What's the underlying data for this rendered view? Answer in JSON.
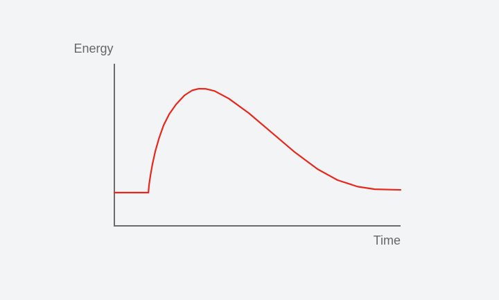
{
  "chart_data": {
    "type": "line",
    "x_label": "Time",
    "y_label": "Energy",
    "xlim": [
      0,
      100
    ],
    "ylim": [
      0,
      100
    ],
    "x": [
      0,
      11.9,
      12.1,
      12.6,
      13.3,
      14.3,
      15.6,
      17.2,
      19.2,
      21.6,
      24.5,
      27.2,
      29.5,
      32,
      35,
      40,
      47,
      55,
      63,
      71,
      78,
      85,
      91,
      100
    ],
    "series": [
      {
        "color": "#e8261a",
        "values": [
          20.5,
          20.5,
          25,
          31,
          38,
          46,
          54,
          62,
          69,
          75,
          80.5,
          83.6,
          84.6,
          84.5,
          83.2,
          78.5,
          69.5,
          57.5,
          45.5,
          35,
          28.2,
          24.2,
          22.6,
          22.2
        ]
      }
    ]
  }
}
